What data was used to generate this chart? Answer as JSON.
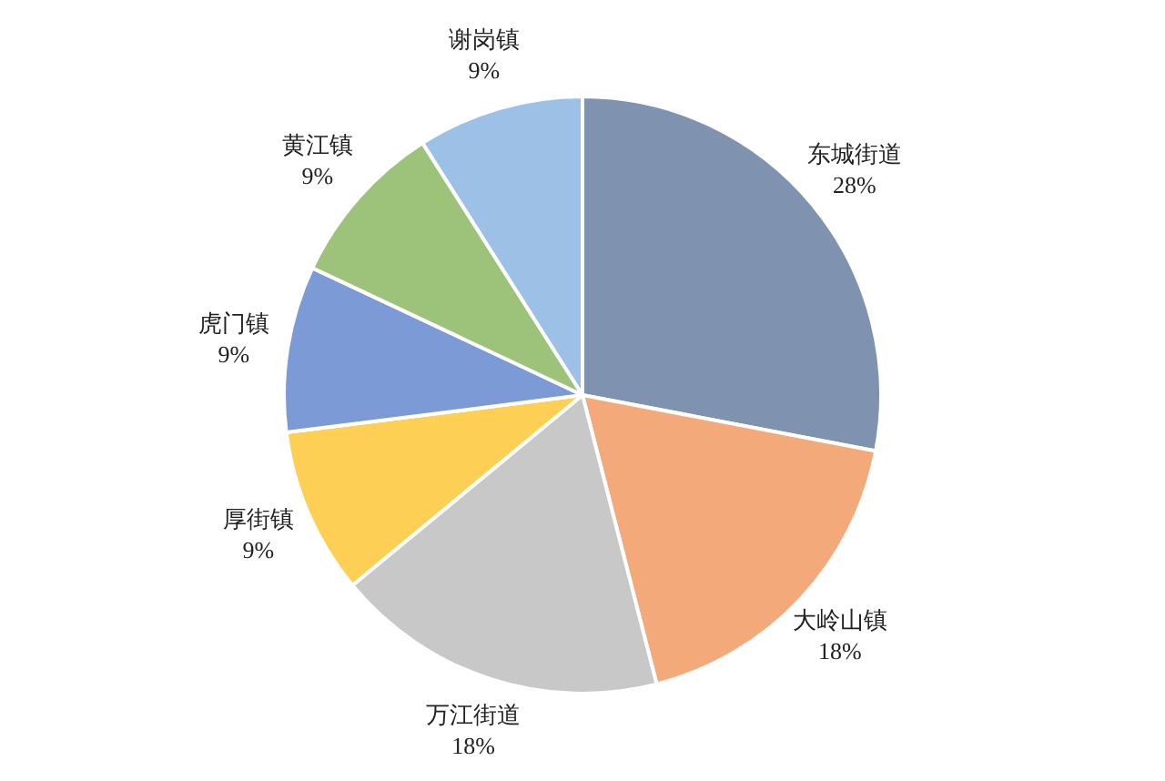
{
  "chart_data": {
    "type": "pie",
    "categories": [
      "东城街道",
      "大岭山镇",
      "万江街道",
      "厚街镇",
      "虎门镇",
      "黄江镇",
      "谢岗镇"
    ],
    "values": [
      28,
      18,
      18,
      9,
      9,
      9,
      9
    ],
    "value_labels": [
      "28%",
      "18%",
      "18%",
      "9%",
      "9%",
      "9%",
      "9%"
    ],
    "colors": [
      "#7f92b0",
      "#f4a97a",
      "#c8c8c8",
      "#fdcf55",
      "#7b9ad6",
      "#9dc37a",
      "#9dc0e6"
    ],
    "legend": false
  }
}
